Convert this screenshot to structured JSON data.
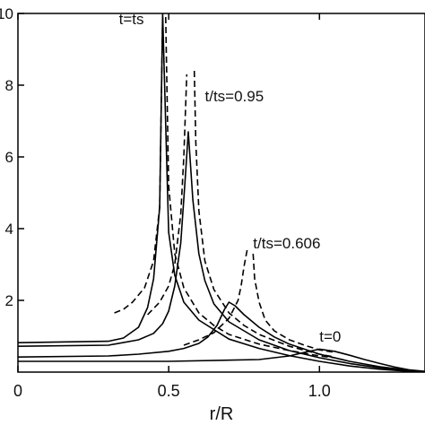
{
  "chart_data": {
    "type": "line",
    "xlabel": "r/R",
    "ylabel": "",
    "title": "",
    "xlim": [
      0,
      1.35
    ],
    "ylim": [
      0,
      10
    ],
    "x_ticks": [
      {
        "value": 0,
        "label": "0"
      },
      {
        "value": 0.5,
        "label": "0.5"
      },
      {
        "value": 1.0,
        "label": "1.0"
      }
    ],
    "y_ticks": [
      {
        "value": 2,
        "label": "2"
      },
      {
        "value": 4,
        "label": "4"
      },
      {
        "value": 6,
        "label": "6"
      },
      {
        "value": 8,
        "label": "8"
      },
      {
        "value": 10,
        "label": "10"
      }
    ],
    "grid": false,
    "legend": "none",
    "annotations": [
      {
        "text": "t=ts",
        "x": 0.335,
        "y": 9.7
      },
      {
        "text": "t/ts=0.95",
        "x": 0.62,
        "y": 7.55
      },
      {
        "text": "t/ts=0.606",
        "x": 0.78,
        "y": 3.45
      },
      {
        "text": "t=0",
        "x": 1.0,
        "y": 0.85
      }
    ],
    "series": [
      {
        "style": "solid",
        "x": [
          0,
          0.3,
          0.35,
          0.4,
          0.43,
          0.45,
          0.47,
          0.48,
          0.5,
          0.52,
          0.55,
          0.6,
          0.7,
          0.8,
          0.9,
          1.0,
          1.1,
          1.2,
          1.3,
          1.35
        ],
        "y": [
          0.82,
          0.86,
          0.95,
          1.25,
          1.8,
          2.6,
          4.6,
          10.0,
          3.9,
          2.7,
          1.95,
          1.45,
          0.92,
          0.66,
          0.46,
          0.3,
          0.17,
          0.08,
          0.02,
          0.0
        ]
      },
      {
        "style": "solid",
        "x": [
          0,
          0.3,
          0.4,
          0.45,
          0.48,
          0.5,
          0.52,
          0.54,
          0.555,
          0.565,
          0.58,
          0.6,
          0.62,
          0.65,
          0.7,
          0.8,
          0.9,
          1.0,
          1.1,
          1.2,
          1.3,
          1.35
        ],
        "y": [
          0.72,
          0.75,
          0.9,
          1.08,
          1.35,
          1.7,
          2.4,
          3.6,
          5.4,
          6.7,
          4.8,
          3.3,
          2.55,
          1.9,
          1.4,
          0.9,
          0.6,
          0.4,
          0.24,
          0.12,
          0.04,
          0.0
        ]
      },
      {
        "style": "solid",
        "x": [
          0,
          0.3,
          0.4,
          0.5,
          0.55,
          0.6,
          0.63,
          0.66,
          0.685,
          0.7,
          0.72,
          0.75,
          0.8,
          0.85,
          0.9,
          1.0,
          1.1,
          1.2,
          1.3,
          1.35
        ],
        "y": [
          0.42,
          0.45,
          0.5,
          0.58,
          0.66,
          0.8,
          0.98,
          1.3,
          1.75,
          1.95,
          1.85,
          1.6,
          1.25,
          0.98,
          0.78,
          0.5,
          0.3,
          0.15,
          0.05,
          0.0
        ]
      },
      {
        "style": "solid",
        "x": [
          0,
          0.5,
          0.8,
          0.9,
          0.95,
          1.0,
          1.05,
          1.1,
          1.15,
          1.2,
          1.25,
          1.3,
          1.35
        ],
        "y": [
          0.3,
          0.3,
          0.35,
          0.45,
          0.55,
          0.64,
          0.58,
          0.47,
          0.35,
          0.24,
          0.14,
          0.06,
          0.02
        ]
      },
      {
        "style": "dashed",
        "x": [
          0.32,
          0.35,
          0.38,
          0.42,
          0.45,
          0.47,
          0.48
        ],
        "y": [
          1.65,
          1.75,
          1.95,
          2.35,
          3.1,
          4.6,
          9.9
        ]
      },
      {
        "style": "dashed",
        "x": [
          0.49,
          0.5,
          0.52,
          0.55,
          0.6,
          0.65,
          0.7,
          0.8,
          0.9,
          1.0,
          1.05
        ],
        "y": [
          9.9,
          5.2,
          3.3,
          2.35,
          1.65,
          1.3,
          1.05,
          0.78,
          0.6,
          0.45,
          0.4
        ]
      },
      {
        "style": "dashed",
        "x": [
          0.43,
          0.47,
          0.5,
          0.52,
          0.54,
          0.55,
          0.56
        ],
        "y": [
          1.6,
          1.95,
          2.4,
          3.0,
          4.4,
          6.0,
          8.3
        ]
      },
      {
        "style": "dashed",
        "x": [
          0.585,
          0.59,
          0.6,
          0.62,
          0.65,
          0.7,
          0.75,
          0.8,
          0.9,
          1.0,
          1.05
        ],
        "y": [
          8.4,
          6.4,
          4.5,
          3.1,
          2.3,
          1.65,
          1.3,
          1.05,
          0.72,
          0.5,
          0.42
        ]
      },
      {
        "style": "dashed",
        "x": [
          0.55,
          0.6,
          0.65,
          0.7,
          0.73,
          0.74,
          0.75,
          0.76
        ],
        "y": [
          0.75,
          0.9,
          1.1,
          1.5,
          2.0,
          2.4,
          2.95,
          3.4
        ]
      },
      {
        "style": "dashed",
        "x": [
          0.78,
          0.785,
          0.8,
          0.82,
          0.85,
          0.9,
          0.95,
          1.0,
          1.05
        ],
        "y": [
          3.3,
          2.6,
          1.95,
          1.45,
          1.15,
          0.9,
          0.75,
          0.62,
          0.55
        ]
      }
    ]
  }
}
